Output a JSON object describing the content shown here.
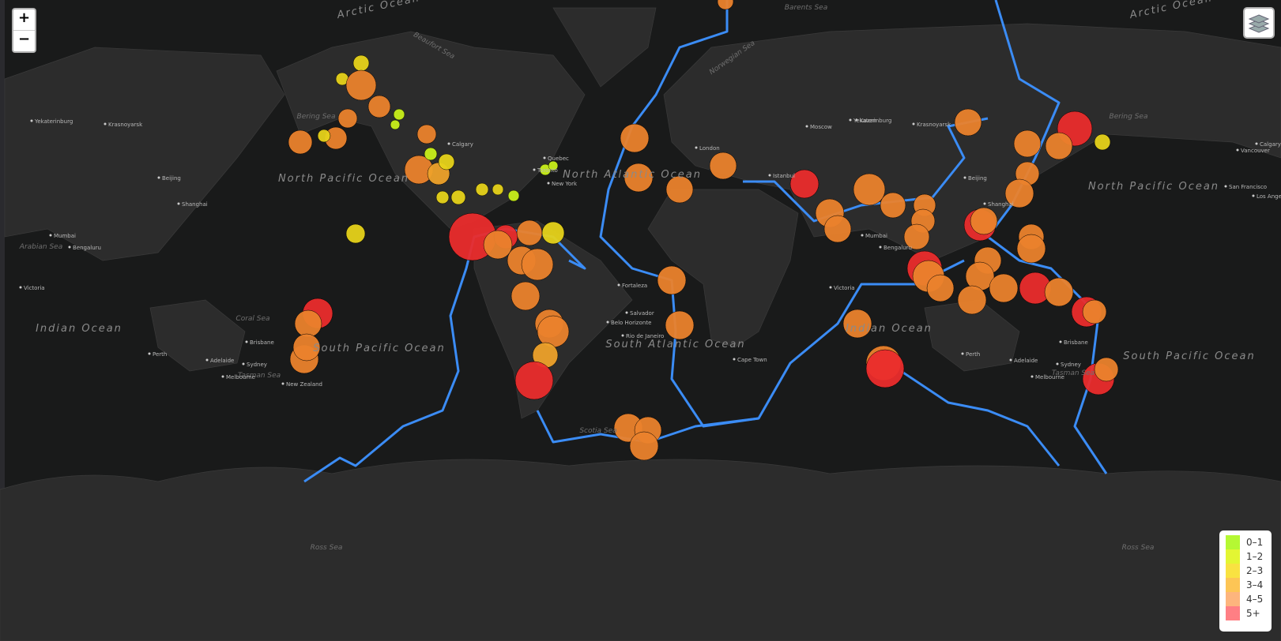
{
  "controls": {
    "zoom_in": "+",
    "zoom_out": "−"
  },
  "legend": {
    "items": [
      {
        "label": "0–1",
        "color": "#a3f600"
      },
      {
        "label": "1–2",
        "color": "#dcf400"
      },
      {
        "label": "2–3",
        "color": "#f7db11"
      },
      {
        "label": "3–4",
        "color": "#fdb72a"
      },
      {
        "label": "4–5",
        "color": "#fca35d"
      },
      {
        "label": "5+",
        "color": "#ff5f65"
      }
    ]
  },
  "map_labels": {
    "oceans": [
      "Arctic Ocean",
      "North Pacific Ocean",
      "North Atlantic Ocean",
      "South Pacific Ocean",
      "South Atlantic Ocean",
      "Indian Ocean",
      "Indian Ocean",
      "North Pacific Ocean",
      "South Pacific Ocean",
      "Arctic Ocean"
    ],
    "seas": [
      "Ross Sea",
      "Ross Sea",
      "Scotia Sea",
      "Coral Sea",
      "Tasman Sea",
      "Tasman Sea",
      "Bering Sea",
      "Bering Sea",
      "Norwegian Sea",
      "Barents Sea",
      "Arabian Sea",
      "Beaufort Sea"
    ],
    "cities": [
      "Calgary",
      "Toronto",
      "New York",
      "Quebec",
      "Fortaleza",
      "Salvador",
      "Belo Horizonte",
      "Rio de Janeiro",
      "Cape Town",
      "Istanbul",
      "Moscow",
      "Kazan",
      "Yekaterinburg",
      "Krasnoyarsk",
      "Mumbai",
      "Bengaluru",
      "Victoria",
      "Perth",
      "Adelaide",
      "Melbourne",
      "Sydney",
      "Brisbane",
      "Beijing",
      "Shanghai",
      "San Francisco",
      "Los Angeles",
      "Vancouver",
      "Calgary",
      "London",
      "Perth",
      "Adelaide",
      "Melbourne",
      "Sydney",
      "Brisbane",
      "Mumbai",
      "Bengaluru",
      "Victoria",
      "Yekaterinburg",
      "Krasnoyarsk",
      "Beijing",
      "Shanghai",
      "New Zealand"
    ]
  }
}
